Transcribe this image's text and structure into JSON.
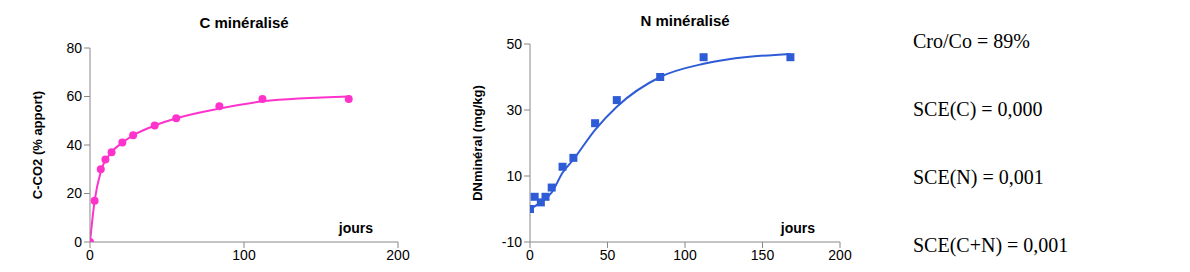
{
  "chart_data": [
    {
      "type": "scatter",
      "title": "C minéralisé",
      "x_label": "jours",
      "y_label": "C-CO2 (% apport)",
      "xlim": [
        0,
        200
      ],
      "xticks": [
        0,
        100,
        200
      ],
      "ylim": [
        0,
        80
      ],
      "yticks": [
        0,
        20,
        40,
        60,
        80
      ],
      "grid": false,
      "series": [
        {
          "type": "scatter",
          "color": "#ff33cc",
          "marker": "circle",
          "x": [
            0,
            3,
            7,
            10,
            14,
            21,
            28,
            42,
            56,
            84,
            112,
            168
          ],
          "values": [
            0,
            17,
            30,
            34,
            37,
            41,
            44,
            48,
            51,
            56,
            59,
            59
          ]
        },
        {
          "type": "line",
          "color": "#ff33cc",
          "marker": "none",
          "x": [
            0,
            3,
            7,
            14,
            21,
            28,
            42,
            56,
            84,
            112,
            168
          ],
          "values": [
            0,
            17,
            29,
            37,
            41,
            44,
            48,
            51,
            55,
            58,
            60
          ]
        }
      ]
    },
    {
      "type": "scatter",
      "title": "N minéralisé",
      "x_label": "jours",
      "y_label": "DNminéral (mg/kg)",
      "xlim": [
        0,
        200
      ],
      "xticks": [
        0,
        50,
        100,
        150,
        200
      ],
      "ylim": [
        -10,
        50
      ],
      "yticks": [
        -10,
        10,
        30,
        50
      ],
      "grid": false,
      "series": [
        {
          "type": "scatter",
          "color": "#2e5cd6",
          "marker": "square",
          "x": [
            0,
            3,
            7,
            10,
            14,
            21,
            28,
            42,
            56,
            84,
            112,
            168
          ],
          "values": [
            0,
            3.7,
            2,
            3.7,
            6.5,
            12.8,
            15.5,
            26,
            33,
            40,
            46,
            46
          ]
        },
        {
          "type": "line",
          "color": "#2e5cd6",
          "marker": "none",
          "x": [
            0,
            7,
            14,
            21,
            28,
            42,
            56,
            84,
            112,
            168
          ],
          "values": [
            0,
            2,
            5,
            11,
            15,
            24,
            31,
            40,
            44,
            47
          ]
        }
      ]
    }
  ],
  "annotations": [
    "Cro/Co = 89%",
    "SCE(C) = 0,000",
    "SCE(N) = 0,001",
    "SCE(C+N) = 0,001"
  ]
}
